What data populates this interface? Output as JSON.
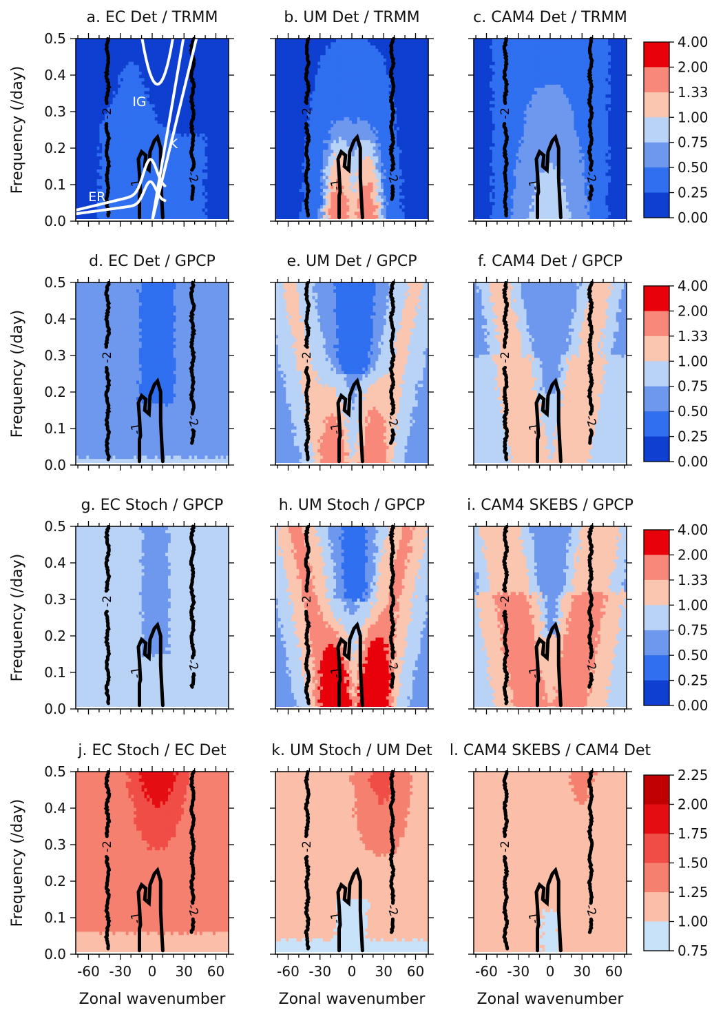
{
  "chart_data": {
    "type": "heatmap",
    "layout": "4x3 panel grid",
    "xlabel": "Zonal wavenumber",
    "ylabel": "Frequency (/day)",
    "xticks": [
      -60,
      -30,
      0,
      30,
      60
    ],
    "yticks": [
      0.0,
      0.1,
      0.2,
      0.3,
      0.4,
      0.5
    ],
    "xlim": [
      -72,
      72
    ],
    "ylim": [
      0.0,
      0.5
    ],
    "contours": [
      {
        "label": "-2",
        "kind": "dashed",
        "color": "#000000"
      },
      {
        "label": "-1",
        "kind": "dashed",
        "color": "#000000"
      }
    ],
    "dispersion_curves": [
      {
        "label": "IG",
        "color": "#ffffff"
      },
      {
        "label": "K",
        "color": "#ffffff"
      },
      {
        "label": "ER",
        "color": "#ffffff"
      }
    ],
    "colorbars": [
      {
        "rows": [
          0,
          1,
          2
        ],
        "levels": [
          "4.00",
          "2.00",
          "1.33",
          "1.00",
          "0.75",
          "0.50",
          "0.25",
          "0.00"
        ],
        "colors": [
          "#e8000b",
          "#f7887a",
          "#fbc6b0",
          "#b9d3f6",
          "#6e98ee",
          "#2f6ff0",
          "#0f3fd0"
        ]
      },
      {
        "rows": [
          3
        ],
        "levels": [
          "2.25",
          "2.00",
          "1.75",
          "1.50",
          "1.25",
          "1.00",
          "0.75"
        ],
        "colors": [
          "#c00000",
          "#e40e12",
          "#f04d46",
          "#f5806f",
          "#fbbfa9",
          "#c8e2fa"
        ]
      }
    ],
    "panels": [
      {
        "title": "a. EC Det / TRMM",
        "field": "ec_trmm"
      },
      {
        "title": "b. UM Det / TRMM",
        "field": "um_trmm"
      },
      {
        "title": "c. CAM4 Det / TRMM",
        "field": "cam_trmm"
      },
      {
        "title": "d. EC Det / GPCP",
        "field": "ec_gpcp"
      },
      {
        "title": "e. UM Det / GPCP",
        "field": "um_gpcp"
      },
      {
        "title": "f. CAM4 Det / GPCP",
        "field": "cam_gpcp"
      },
      {
        "title": "g. EC Stoch / GPCP",
        "field": "ecs_gpcp"
      },
      {
        "title": "h. UM Stoch / GPCP",
        "field": "ums_gpcp"
      },
      {
        "title": "i. CAM4 SKEBS / GPCP",
        "field": "cams_gpcp"
      },
      {
        "title": "j. EC Stoch / EC Det",
        "field": "ec_ratio"
      },
      {
        "title": "k. UM Stoch / UM Det",
        "field": "um_ratio"
      },
      {
        "title": "l. CAM4 SKEBS / CAM4 Det",
        "field": "cam_ratio"
      }
    ]
  }
}
